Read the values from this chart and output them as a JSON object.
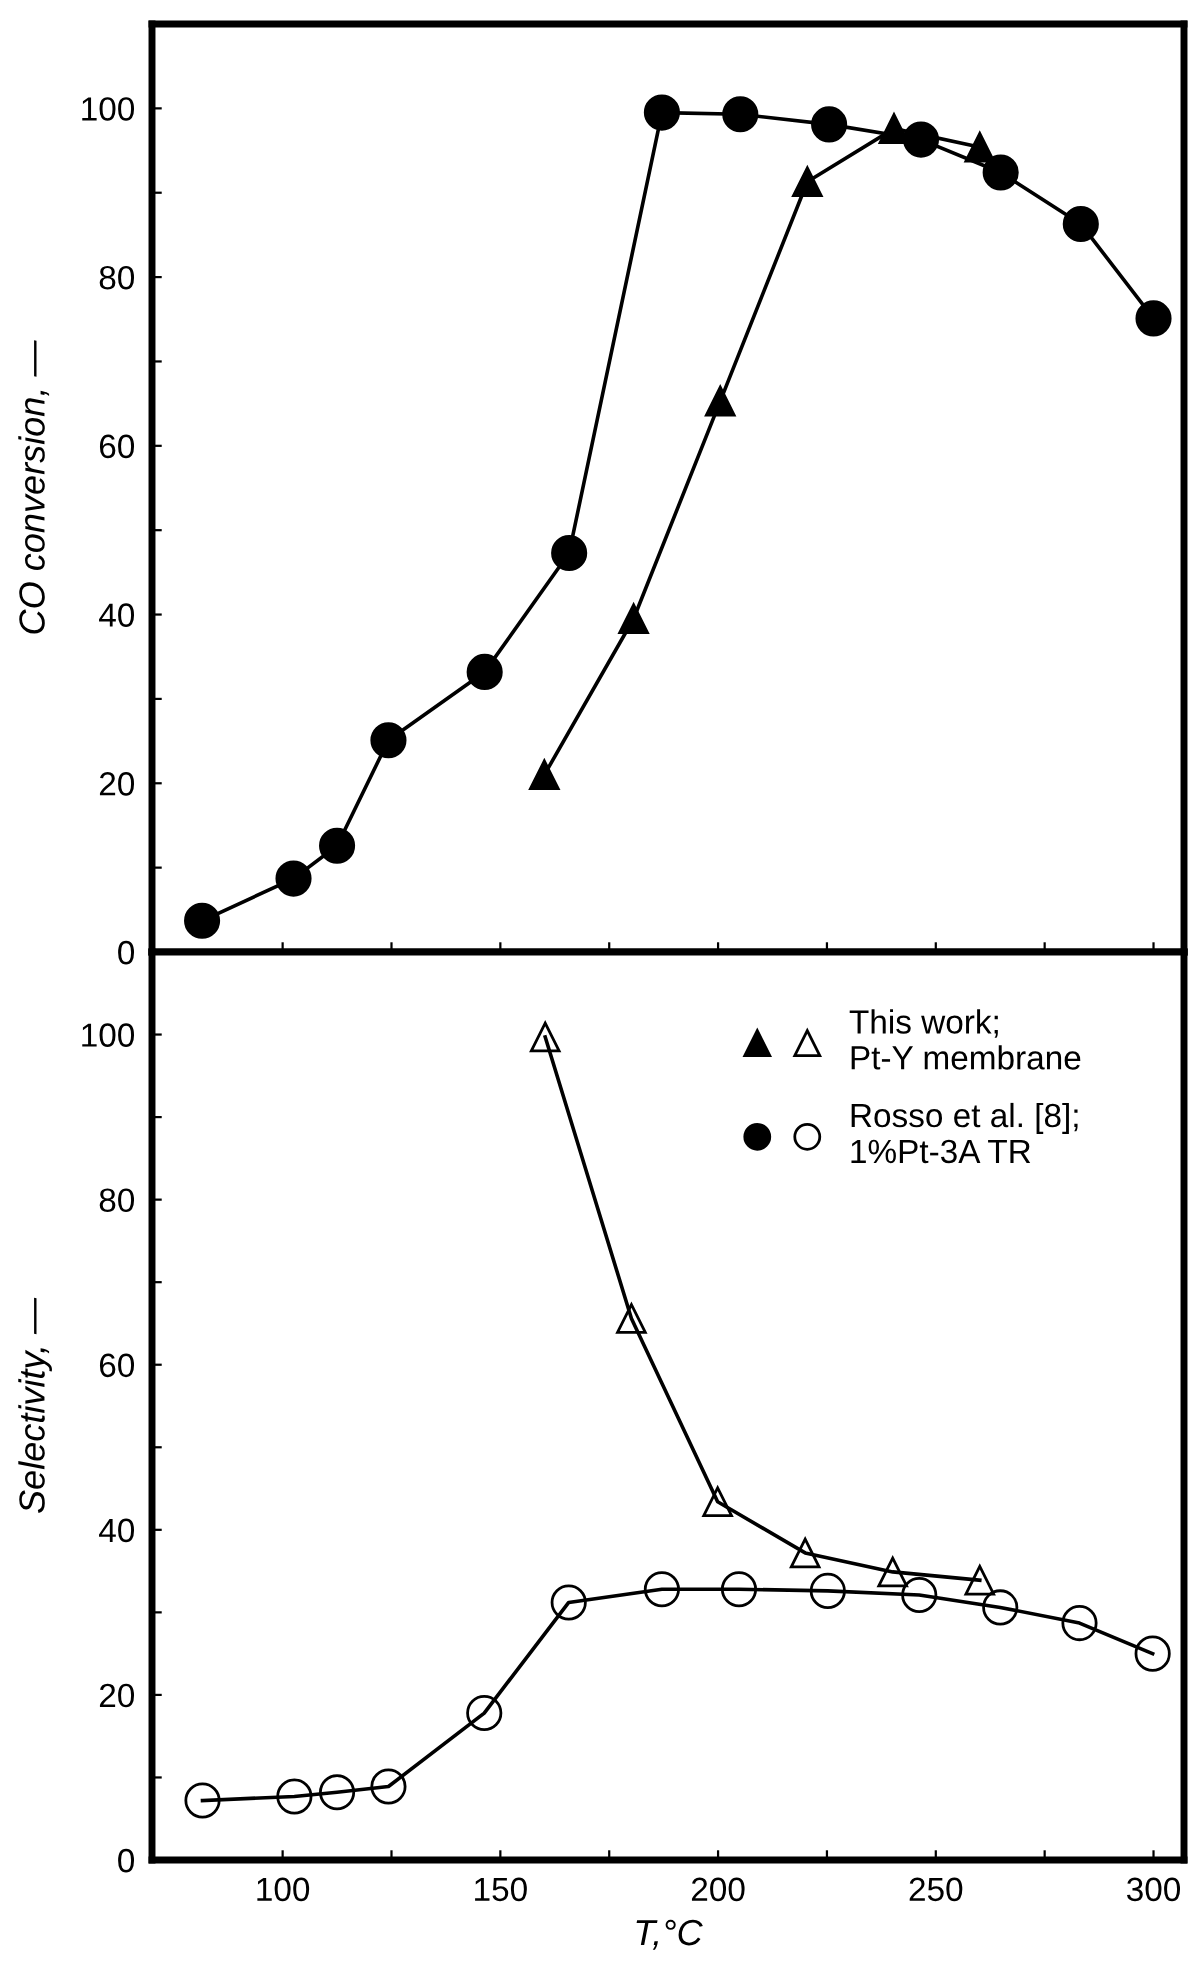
{
  "chart_data": [
    {
      "type": "line",
      "ylabel": "CO conversion, —",
      "xlim": [
        70,
        307
      ],
      "ylim": [
        0,
        110
      ],
      "xticks": [
        {
          "value": 100,
          "label": null
        },
        {
          "value": 125,
          "label": null
        },
        {
          "value": 150,
          "label": null
        },
        {
          "value": 175,
          "label": null
        },
        {
          "value": 200,
          "label": null
        },
        {
          "value": 225,
          "label": null
        },
        {
          "value": 250,
          "label": null
        },
        {
          "value": 275,
          "label": null
        },
        {
          "value": 300,
          "label": null
        }
      ],
      "yticks": [
        0,
        {
          "value": 10,
          "label": null
        },
        20,
        {
          "value": 30,
          "label": null
        },
        40,
        {
          "value": 50,
          "label": null
        },
        60,
        {
          "value": 70,
          "label": null
        },
        80,
        {
          "value": 90,
          "label": null
        },
        100
      ],
      "tick_labels": "y",
      "grid": false,
      "legend": false,
      "line_style": "solid",
      "series": [
        {
          "color": "#000000",
          "marker": "circle",
          "x": [
            81.5,
            102.5,
            112.5,
            124.3,
            146.4,
            165.8,
            187.1,
            205.1,
            225.5,
            246.6,
            264.9,
            283.3,
            300
          ],
          "values": [
            3.7,
            8.7,
            12.6,
            25.1,
            33.2,
            47.3,
            99.5,
            99.3,
            98.1,
            96.3,
            92.4,
            86.3,
            75.1
          ]
        },
        {
          "color": "#000000",
          "marker": "triangle",
          "x": [
            160.1,
            180.6,
            200.5,
            220.5,
            240.4,
            260.1
          ],
          "values": [
            21.0,
            39.5,
            65.3,
            91.3,
            97.6,
            95.4
          ]
        }
      ]
    },
    {
      "type": "line",
      "xlabel": "T,°C",
      "ylabel": "Selectivity, —",
      "xlim": [
        70,
        307
      ],
      "ylim": [
        0,
        110
      ],
      "xticks": [
        100,
        {
          "value": 125,
          "label": null
        },
        150,
        {
          "value": 175,
          "label": null
        },
        200,
        {
          "value": 225,
          "label": null
        },
        250,
        {
          "value": 275,
          "label": null
        },
        300
      ],
      "yticks": [
        0,
        {
          "value": 10,
          "label": null
        },
        20,
        {
          "value": 30,
          "label": null
        },
        40,
        {
          "value": 50,
          "label": null
        },
        60,
        {
          "value": 70,
          "label": null
        },
        80,
        {
          "value": 90,
          "label": null
        },
        100
      ],
      "grid": false,
      "legend": "top right",
      "line_style": "solid",
      "series": [
        {
          "name": "This work;\nPt-Y membrane",
          "color": "#000000",
          "marker": "triangle",
          "x": [
            160.3,
            180.1,
            199.9,
            220.0,
            240.1,
            260.1
          ],
          "values": [
            99.7,
            65.6,
            43.4,
            37.2,
            34.9,
            33.9
          ]
        },
        {
          "name": "Rosso et al. [8];\n1%Pt-3A TR",
          "color": "#000000",
          "marker": "circle",
          "x": [
            81.6,
            102.7,
            112.5,
            124.3,
            146.3,
            165.7,
            187.1,
            204.8,
            225.2,
            246.2,
            264.8,
            283.0,
            299.8
          ],
          "values": [
            7.2,
            7.7,
            8.2,
            8.9,
            17.8,
            31.2,
            32.8,
            32.8,
            32.6,
            32.1,
            30.6,
            28.7,
            25.0
          ]
        }
      ]
    }
  ]
}
